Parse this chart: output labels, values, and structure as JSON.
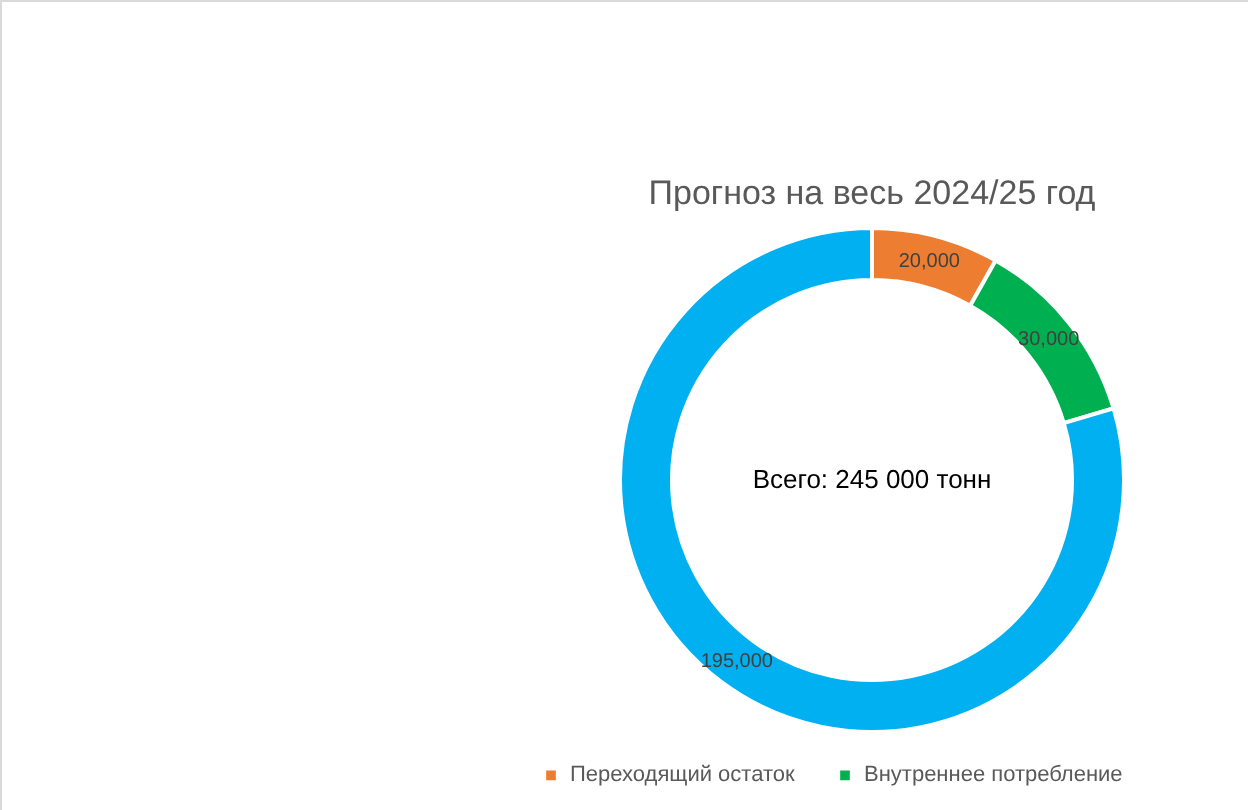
{
  "chart_data": {
    "type": "donut",
    "title": "Прогноз на весь 2024/25 год",
    "categories": [
      "Переходящий остаток",
      "Внутреннее потребление",
      null
    ],
    "values": [
      20000,
      30000,
      195000
    ],
    "colors": [
      "#ed7d31",
      "#00b050",
      "#00b0f0"
    ],
    "value_labels": [
      "20,000",
      "30,000",
      "195,000"
    ],
    "annotations": [
      "Всего: 245 000 тонн"
    ],
    "legend": "bottom"
  }
}
